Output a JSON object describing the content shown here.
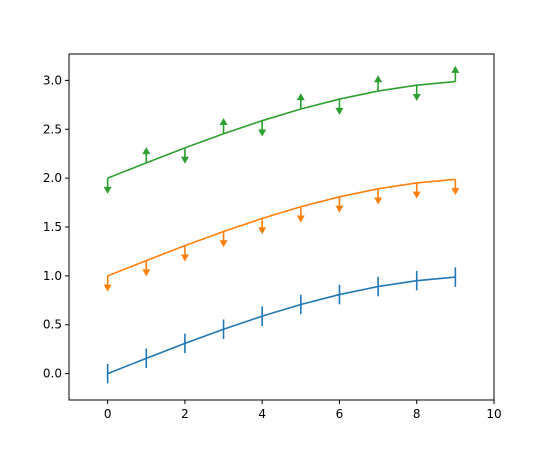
{
  "chart_data": {
    "type": "line",
    "title": "",
    "xlabel": "",
    "ylabel": "",
    "xlim": [
      -1,
      10
    ],
    "ylim": [
      -0.27,
      3.27
    ],
    "x_ticks": [
      0,
      2,
      4,
      6,
      8,
      10
    ],
    "y_ticks": [
      0.0,
      0.5,
      1.0,
      1.5,
      2.0,
      2.5,
      3.0
    ],
    "x_tick_labels": [
      "0",
      "2",
      "4",
      "6",
      "8",
      "10"
    ],
    "y_tick_labels": [
      "0.0",
      "0.5",
      "1.0",
      "1.5",
      "2.0",
      "2.5",
      "3.0"
    ],
    "grid": false,
    "x": [
      0,
      1,
      2,
      3,
      4,
      5,
      6,
      7,
      8,
      9
    ],
    "series": [
      {
        "color": "#1f77b4",
        "values": [
          0.0,
          0.1564,
          0.309,
          0.454,
          0.5878,
          0.7071,
          0.809,
          0.891,
          0.9511,
          0.9877
        ],
        "error": 0.1,
        "uplims": [
          false,
          false,
          false,
          false,
          false,
          false,
          false,
          false,
          false,
          false
        ],
        "lolims": [
          false,
          false,
          false,
          false,
          false,
          false,
          false,
          false,
          false,
          false
        ]
      },
      {
        "color": "#ff7f0e",
        "values": [
          1.0,
          1.1564,
          1.309,
          1.454,
          1.5878,
          1.7071,
          1.809,
          1.891,
          1.9511,
          1.9877
        ],
        "error": 0.1,
        "uplims": [
          true,
          true,
          true,
          true,
          true,
          true,
          true,
          true,
          true,
          true
        ],
        "lolims": [
          false,
          false,
          false,
          false,
          false,
          false,
          false,
          false,
          false,
          false
        ]
      },
      {
        "color": "#2ca02c",
        "values": [
          2.0,
          2.1564,
          2.309,
          2.454,
          2.5878,
          2.7071,
          2.809,
          2.891,
          2.9511,
          2.9877
        ],
        "error": 0.1,
        "uplims": [
          true,
          false,
          true,
          false,
          true,
          false,
          true,
          false,
          true,
          false
        ],
        "lolims": [
          false,
          true,
          false,
          true,
          false,
          true,
          false,
          true,
          false,
          true
        ]
      }
    ]
  }
}
